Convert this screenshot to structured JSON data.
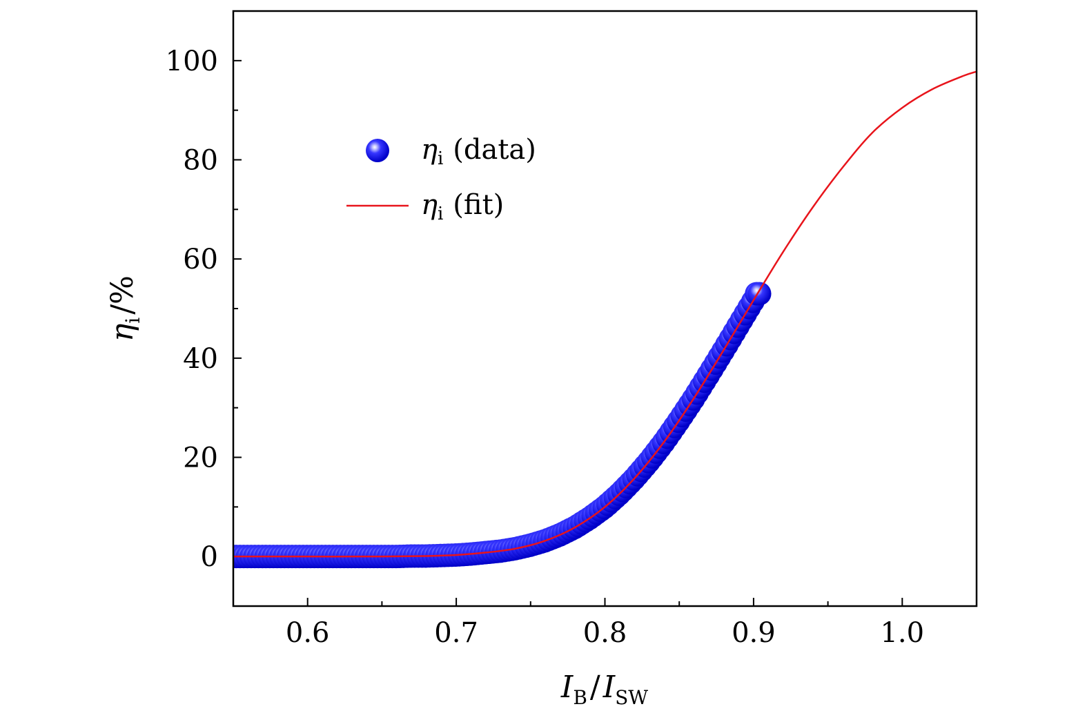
{
  "chart_data": {
    "type": "scatter",
    "xlabel": {
      "main": "I",
      "main_sub": "B",
      "sep": "/",
      "den": "I",
      "den_sub": "SW"
    },
    "ylabel": {
      "main": "η",
      "sub": "i",
      "unit": "/%"
    },
    "xlim": [
      0.55,
      1.05
    ],
    "ylim": [
      -10,
      110
    ],
    "xticks": [
      0.6,
      0.7,
      0.8,
      0.9,
      1.0
    ],
    "xtick_labels": [
      "0.6",
      "0.7",
      "0.8",
      "0.9",
      "1.0"
    ],
    "yticks": [
      0,
      20,
      40,
      60,
      80,
      100
    ],
    "ytick_labels": [
      "0",
      "20",
      "40",
      "60",
      "80",
      "100"
    ],
    "legend": {
      "position": "upper-left",
      "entries": [
        {
          "symbol": "η",
          "sub": "i",
          "label": "(data)"
        },
        {
          "symbol": "η",
          "sub": "i",
          "label": "(fit)"
        }
      ]
    },
    "series": [
      {
        "name": "η_i (data)",
        "kind": "scatter",
        "color": "#1a1aee",
        "points": [
          [
            0.552,
            0.0
          ],
          [
            0.56,
            0.0
          ],
          [
            0.57,
            0.0
          ],
          [
            0.58,
            0.0
          ],
          [
            0.59,
            0.0
          ],
          [
            0.6,
            0.0
          ],
          [
            0.61,
            0.0
          ],
          [
            0.62,
            0.0
          ],
          [
            0.63,
            0.0
          ],
          [
            0.64,
            0.0
          ],
          [
            0.65,
            0.0
          ],
          [
            0.66,
            0.0
          ],
          [
            0.67,
            0.1
          ],
          [
            0.68,
            0.1
          ],
          [
            0.69,
            0.2
          ],
          [
            0.7,
            0.3
          ],
          [
            0.71,
            0.5
          ],
          [
            0.72,
            0.8
          ],
          [
            0.73,
            1.1
          ],
          [
            0.74,
            1.6
          ],
          [
            0.75,
            2.3
          ],
          [
            0.76,
            3.2
          ],
          [
            0.77,
            4.4
          ],
          [
            0.78,
            5.9
          ],
          [
            0.79,
            7.8
          ],
          [
            0.8,
            10.0
          ],
          [
            0.81,
            12.7
          ],
          [
            0.82,
            15.8
          ],
          [
            0.83,
            19.3
          ],
          [
            0.84,
            23.2
          ],
          [
            0.85,
            27.5
          ],
          [
            0.86,
            32.0
          ],
          [
            0.87,
            36.8
          ],
          [
            0.88,
            41.7
          ],
          [
            0.89,
            46.7
          ],
          [
            0.895,
            49.2
          ],
          [
            0.9,
            51.7
          ],
          [
            0.902,
            53.0
          ],
          [
            0.904,
            53.0
          ]
        ]
      },
      {
        "name": "η_i (fit)",
        "kind": "line",
        "color": "#e8141b",
        "points": [
          [
            0.55,
            0.0
          ],
          [
            0.6,
            0.0
          ],
          [
            0.65,
            0.0
          ],
          [
            0.68,
            0.1
          ],
          [
            0.7,
            0.3
          ],
          [
            0.72,
            0.8
          ],
          [
            0.74,
            1.6
          ],
          [
            0.76,
            3.2
          ],
          [
            0.78,
            5.9
          ],
          [
            0.8,
            10.0
          ],
          [
            0.82,
            15.8
          ],
          [
            0.84,
            23.2
          ],
          [
            0.86,
            32.0
          ],
          [
            0.88,
            41.7
          ],
          [
            0.9,
            51.7
          ],
          [
            0.92,
            61.5
          ],
          [
            0.94,
            70.5
          ],
          [
            0.96,
            78.5
          ],
          [
            0.98,
            85.5
          ],
          [
            1.0,
            90.5
          ],
          [
            1.02,
            94.2
          ],
          [
            1.04,
            96.8
          ],
          [
            1.05,
            97.8
          ]
        ]
      }
    ]
  }
}
